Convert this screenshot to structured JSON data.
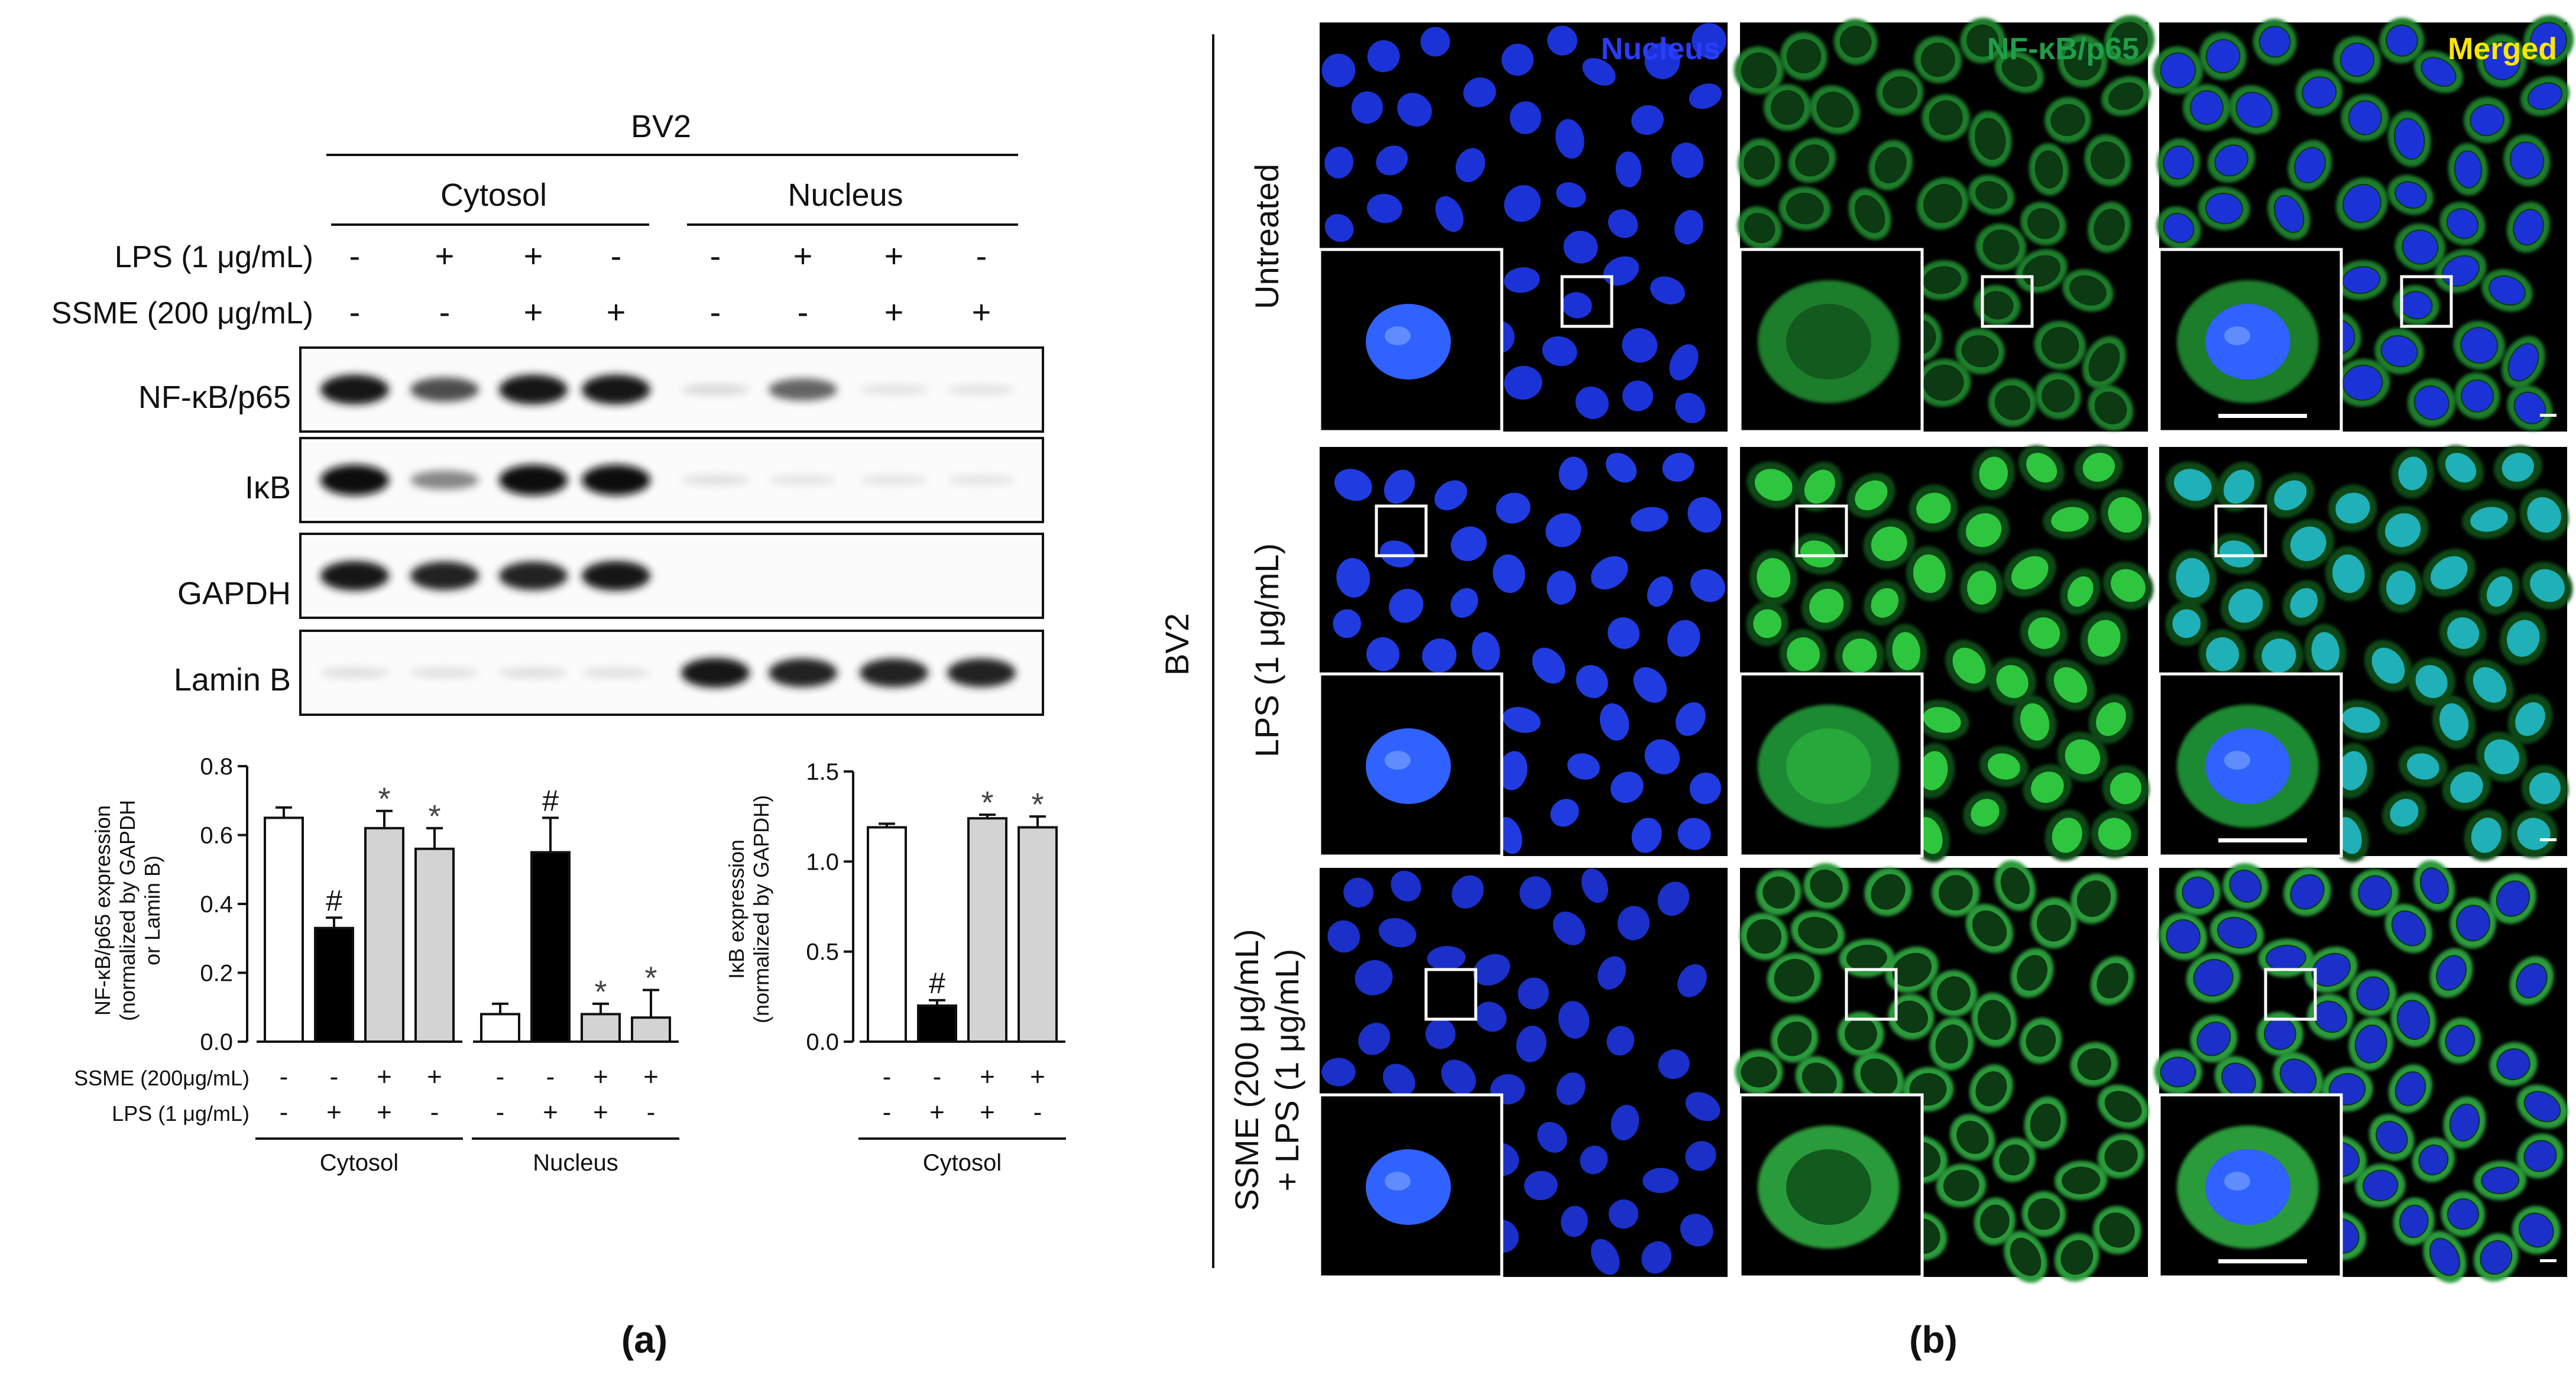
{
  "panel_a": {
    "cell_line": "BV2",
    "fractions": [
      "Cytosol",
      "Nucleus"
    ],
    "treatment_rows": [
      {
        "label": "LPS (1 μg/mL)",
        "signs": [
          "-",
          "+",
          "+",
          "-",
          "-",
          "+",
          "+",
          "-"
        ]
      },
      {
        "label": "SSME (200 μg/mL)",
        "signs": [
          "-",
          "-",
          "+",
          "+",
          "-",
          "-",
          "+",
          "+"
        ]
      }
    ],
    "blots": [
      {
        "label": "NF-κB/p65",
        "bands": [
          0.95,
          0.7,
          0.95,
          0.95,
          0.08,
          0.6,
          0.04,
          0.04
        ]
      },
      {
        "label": "IκB",
        "bands": [
          1.0,
          0.45,
          1.0,
          1.0,
          0.05,
          0.03,
          0.03,
          0.03
        ]
      },
      {
        "label": "GAPDH",
        "bands": [
          0.95,
          0.9,
          0.9,
          0.95,
          0,
          0,
          0,
          0
        ]
      },
      {
        "label": "Lamin B",
        "bands": [
          0.06,
          0.05,
          0.06,
          0.05,
          0.95,
          0.9,
          0.9,
          0.9
        ]
      }
    ],
    "label": "(a)"
  },
  "chart_data": [
    {
      "type": "bar",
      "ylabel": "NF-κB/p65 expression (normalized by GAPDH or Lamin B)",
      "ylabel_lines": [
        "NF-κB/p65 expression",
        "(normalized by GAPDH",
        "or Lamin B)"
      ],
      "ylim": [
        0,
        0.8
      ],
      "yticks": [
        "0.0",
        "0.2",
        "0.4",
        "0.6",
        "0.8"
      ],
      "groups": [
        {
          "label": "Cytosol",
          "values": [
            0.65,
            0.33,
            0.62,
            0.56
          ],
          "errors": [
            0.03,
            0.03,
            0.05,
            0.06
          ],
          "marks": [
            "",
            "#",
            "*",
            "*"
          ]
        },
        {
          "label": "Nucleus",
          "values": [
            0.08,
            0.55,
            0.08,
            0.07
          ],
          "errors": [
            0.03,
            0.1,
            0.03,
            0.08
          ],
          "marks": [
            "",
            "#",
            "*",
            "*"
          ]
        }
      ],
      "bar_colors": [
        "#ffffff",
        "#000000",
        "#d3d3d3",
        "#d3d3d3"
      ],
      "treatment_rows": [
        {
          "label": "SSME (200μg/mL)",
          "signs": [
            "-",
            "-",
            "+",
            "+",
            "-",
            "-",
            "+",
            "+"
          ]
        },
        {
          "label": "LPS (1 μg/mL)",
          "signs": [
            "-",
            "+",
            "+",
            "-",
            "-",
            "+",
            "+",
            "-"
          ]
        }
      ]
    },
    {
      "type": "bar",
      "ylabel": "IκB expression (normalized by GAPDH)",
      "ylabel_lines": [
        "IκB expression",
        "(normalized by GAPDH)"
      ],
      "ylim": [
        0,
        1.5
      ],
      "yticks": [
        "0.0",
        "0.5",
        "1.0",
        "1.5"
      ],
      "groups": [
        {
          "label": "Cytosol",
          "values": [
            1.19,
            0.2,
            1.24,
            1.19
          ],
          "errors": [
            0.02,
            0.03,
            0.02,
            0.06
          ],
          "marks": [
            "",
            "#",
            "*",
            "*"
          ]
        }
      ],
      "bar_colors": [
        "#ffffff",
        "#000000",
        "#d3d3d3",
        "#d3d3d3"
      ],
      "treatment_rows": [
        {
          "signs": [
            "-",
            "-",
            "+",
            "+"
          ]
        },
        {
          "signs": [
            "-",
            "+",
            "+",
            "-"
          ]
        }
      ]
    }
  ],
  "panel_b": {
    "cell_line": "BV2",
    "columns": [
      {
        "label": "Nucleus",
        "color": "#2a3cff"
      },
      {
        "label": "NF-κB/p65",
        "color": "#1f9e4a"
      },
      {
        "label": "Merged",
        "color": "#ffe600"
      }
    ],
    "rows": [
      {
        "lines": [
          "Untreated"
        ]
      },
      {
        "lines": [
          "LPS (1 μg/mL)"
        ]
      },
      {
        "lines": [
          "SSME (200 μg/mL)",
          "+ LPS (1 μg/mL)"
        ]
      }
    ],
    "label": "(b)"
  }
}
